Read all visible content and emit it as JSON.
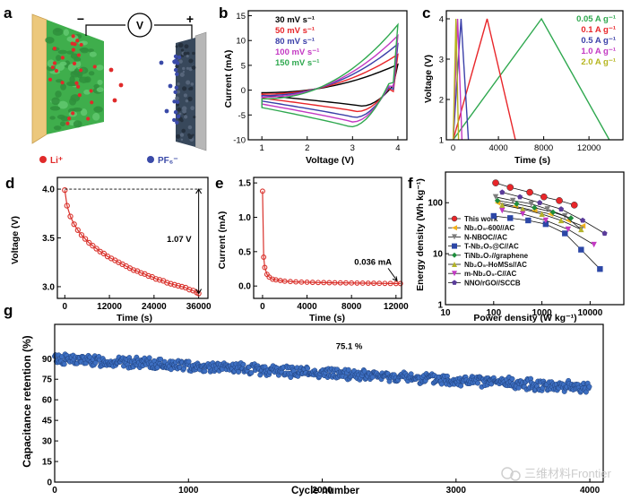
{
  "panel_labels": {
    "a": "a",
    "b": "b",
    "c": "c",
    "d": "d",
    "e": "e",
    "f": "f",
    "g": "g"
  },
  "schematic": {
    "minus_sign": "−",
    "plus_sign": "+",
    "voltmeter_label": "V",
    "legend_li": "Li⁺",
    "legend_pf6": "PF₆⁻",
    "colors": {
      "anode": "#3cb34a",
      "cathode": "#3b4a5e",
      "li": "#e02a2a",
      "pf6": "#3a4aa8",
      "current_collector": "#e9c37a"
    }
  },
  "watermark": "三维材料Frontier",
  "chart_data": [
    {
      "id": "b",
      "type": "line",
      "xlabel": "Voltage (V)",
      "ylabel": "Current (mA)",
      "xlim": [
        0.7,
        4.2
      ],
      "ylim": [
        -10,
        16
      ],
      "xticks": [
        1,
        2,
        3,
        4
      ],
      "yticks": [
        -10,
        -5,
        0,
        5,
        10,
        15
      ],
      "legend_position": "top-left",
      "series": [
        {
          "name": "30 mV s⁻¹",
          "color": "#000000",
          "top_end": 5.2,
          "bottom_min": -3.2,
          "bottom_min_at": 3.2,
          "start": -1.0
        },
        {
          "name": "50 mV s⁻¹",
          "color": "#e8262a",
          "top_end": 7.2,
          "bottom_min": -4.3,
          "bottom_min_at": 3.1,
          "start": -1.6
        },
        {
          "name": "80 mV s⁻¹",
          "color": "#3a3fa8",
          "top_end": 9.3,
          "bottom_min": -5.5,
          "bottom_min_at": 3.05,
          "start": -2.2
        },
        {
          "name": "100 mV s⁻¹",
          "color": "#c339c3",
          "top_end": 11.0,
          "bottom_min": -6.4,
          "bottom_min_at": 3.0,
          "start": -2.8
        },
        {
          "name": "150 mV s⁻¹",
          "color": "#2fa84f",
          "top_end": 13.2,
          "bottom_min": -7.4,
          "bottom_min_at": 2.95,
          "start": -3.5
        }
      ]
    },
    {
      "id": "c",
      "type": "line",
      "xlabel": "Time (s)",
      "ylabel": "Voltage (V)",
      "xlim": [
        -600,
        15000
      ],
      "ylim": [
        1,
        4.2
      ],
      "xticks": [
        0,
        4000,
        8000,
        12000
      ],
      "yticks": [
        1,
        2,
        3,
        4
      ],
      "legend_position": "top-right",
      "series": [
        {
          "name": "0.05 A g⁻¹",
          "color": "#2fa84f",
          "points": [
            [
              0,
              1.0
            ],
            [
              7800,
              4.0
            ],
            [
              13800,
              1.0
            ]
          ]
        },
        {
          "name": "0.1 A g⁻¹",
          "color": "#e8262a",
          "points": [
            [
              0,
              1.0
            ],
            [
              3000,
              4.0
            ],
            [
              5500,
              1.0
            ]
          ]
        },
        {
          "name": "0.5 A g⁻¹",
          "color": "#3a3fa8",
          "points": [
            [
              0,
              1.0
            ],
            [
              700,
              4.0
            ],
            [
              1350,
              1.0
            ]
          ]
        },
        {
          "name": "1.0 A g⁻¹",
          "color": "#c339c3",
          "points": [
            [
              0,
              1.0
            ],
            [
              400,
              4.0
            ],
            [
              780,
              1.0
            ]
          ]
        },
        {
          "name": "2.0 A g⁻¹",
          "color": "#b5b51e",
          "points": [
            [
              0,
              1.0
            ],
            [
              250,
              4.0
            ],
            [
              480,
              1.0
            ]
          ]
        }
      ]
    },
    {
      "id": "d",
      "type": "line",
      "xlabel": "Time (s)",
      "ylabel": "Voltage (V)",
      "xlim": [
        -2000,
        38500
      ],
      "ylim": [
        2.88,
        4.12
      ],
      "xticks": [
        0,
        12000,
        24000,
        36000
      ],
      "xtick_labels": [
        "0",
        "12000",
        "24000",
        "36000"
      ],
      "yticks": [
        3.0,
        3.5,
        4.0
      ],
      "ytick_labels": [
        "3.0",
        "3.5",
        "4.0"
      ],
      "color": "#d9312b",
      "annotation": "1.07 V",
      "reference_top": 4.0,
      "reference_bottom": 2.93,
      "x": [
        0,
        600,
        1500,
        2500,
        3500,
        4500,
        5500,
        6500,
        7500,
        8500,
        9500,
        10500,
        11500,
        12500,
        13500,
        14500,
        15500,
        16500,
        17500,
        18500,
        19500,
        20500,
        21500,
        22500,
        23500,
        24500,
        25500,
        26500,
        27500,
        28500,
        29500,
        30500,
        31500,
        32500,
        33500,
        34500,
        35500,
        36000
      ],
      "y": [
        3.99,
        3.83,
        3.72,
        3.64,
        3.58,
        3.53,
        3.49,
        3.45,
        3.42,
        3.39,
        3.36,
        3.34,
        3.31,
        3.29,
        3.27,
        3.25,
        3.23,
        3.21,
        3.19,
        3.17,
        3.16,
        3.14,
        3.13,
        3.11,
        3.1,
        3.08,
        3.07,
        3.06,
        3.04,
        3.03,
        3.02,
        3.01,
        3.0,
        2.99,
        2.97,
        2.96,
        2.94,
        2.93
      ]
    },
    {
      "id": "e",
      "type": "line",
      "xlabel": "Time (s)",
      "ylabel": "Current (mA)",
      "xlim": [
        -800,
        12500
      ],
      "ylim": [
        -0.18,
        1.58
      ],
      "xticks": [
        0,
        4000,
        8000,
        12000
      ],
      "yticks": [
        0.0,
        0.5,
        1.0,
        1.5
      ],
      "ytick_labels": [
        "0.0",
        "0.5",
        "1.0",
        "1.5"
      ],
      "color": "#d9312b",
      "annotation": "0.036 mA",
      "x": [
        0,
        100,
        200,
        400,
        600,
        900,
        1200,
        1600,
        2000,
        2500,
        3000,
        3500,
        4000,
        4500,
        5000,
        5500,
        6000,
        6500,
        7000,
        7500,
        8000,
        8500,
        9000,
        9500,
        10000,
        10500,
        11000,
        11500,
        12000,
        12400
      ],
      "y": [
        1.38,
        0.42,
        0.27,
        0.17,
        0.13,
        0.1,
        0.09,
        0.08,
        0.07,
        0.065,
        0.06,
        0.057,
        0.055,
        0.053,
        0.051,
        0.05,
        0.048,
        0.047,
        0.046,
        0.045,
        0.044,
        0.043,
        0.042,
        0.041,
        0.04,
        0.039,
        0.038,
        0.037,
        0.036,
        0.036
      ]
    },
    {
      "id": "f",
      "type": "scatter",
      "xlabel": "Power density (W kg⁻¹)",
      "ylabel": "Energy density (Wh kg⁻¹)",
      "xscale": "log",
      "yscale": "log",
      "xlim": [
        10,
        50000
      ],
      "ylim": [
        1,
        400
      ],
      "xticks": [
        10,
        100,
        1000,
        10000
      ],
      "xtick_labels": [
        "10",
        "100",
        "1000",
        "10000"
      ],
      "yticks": [
        1,
        10,
        100
      ],
      "ytick_labels": [
        "1",
        "10",
        "100"
      ],
      "legend_position": "bottom-left",
      "series": [
        {
          "name": "This work",
          "color": "#e8262a",
          "marker": "circle",
          "x": [
            110,
            220,
            560,
            1100,
            2300,
            4700
          ],
          "y": [
            245,
            200,
            160,
            130,
            110,
            90
          ]
        },
        {
          "name": "Nb₂O₅-600//AC",
          "color": "#f2b21c",
          "marker": "triangle-left",
          "x": [
            120,
            280,
            700,
            1500,
            3500,
            7000
          ],
          "y": [
            100,
            85,
            70,
            60,
            45,
            35
          ]
        },
        {
          "name": "N-NBOC//AC",
          "color": "#7d7d7d",
          "marker": "triangle-down",
          "x": [
            110,
            250,
            600,
            1300,
            3000,
            6500
          ],
          "y": [
            130,
            110,
            95,
            75,
            55,
            30
          ]
        },
        {
          "name": "T-Nb₂O₅@C//AC",
          "color": "#2c47a6",
          "marker": "square",
          "x": [
            100,
            220,
            520,
            1200,
            3000,
            6500,
            16000
          ],
          "y": [
            55,
            50,
            45,
            38,
            25,
            12,
            5
          ]
        },
        {
          "name": "TiNb₂O₇//graphene",
          "color": "#1f8c3c",
          "marker": "diamond",
          "x": [
            120,
            300,
            700,
            1700,
            4000
          ],
          "y": [
            110,
            95,
            80,
            65,
            50
          ]
        },
        {
          "name": "Nb₂O₅-HoMSs//AC",
          "color": "#b3b32a",
          "marker": "triangle-up",
          "x": [
            150,
            400,
            1000,
            2500,
            6500
          ],
          "y": [
            90,
            75,
            60,
            45,
            30
          ]
        },
        {
          "name": "m-Nb₂O₅-C//AC",
          "color": "#c339c3",
          "marker": "triangle-down",
          "x": [
            150,
            400,
            1200,
            3500,
            12000
          ],
          "y": [
            70,
            60,
            45,
            30,
            15
          ]
        },
        {
          "name": "NNO/rGO//SCCB",
          "color": "#5a3c9a",
          "marker": "pentagon",
          "x": [
            150,
            350,
            900,
            2500,
            7000,
            20000
          ],
          "y": [
            160,
            130,
            100,
            75,
            45,
            25
          ]
        }
      ]
    },
    {
      "id": "g",
      "type": "scatter",
      "xlabel": "Cycle number",
      "ylabel": "Capacitance retention (%)",
      "xlim": [
        0,
        4100
      ],
      "ylim": [
        0,
        115
      ],
      "xticks": [
        0,
        1000,
        2000,
        3000,
        4000
      ],
      "yticks": [
        0,
        15,
        30,
        45,
        60,
        75,
        90
      ],
      "color": "#3d6fc2",
      "annotation": "75.1 %",
      "trend": {
        "x": [
          0,
          4000
        ],
        "y": [
          90,
          69
        ]
      },
      "scatter_band": 3.5
    }
  ]
}
